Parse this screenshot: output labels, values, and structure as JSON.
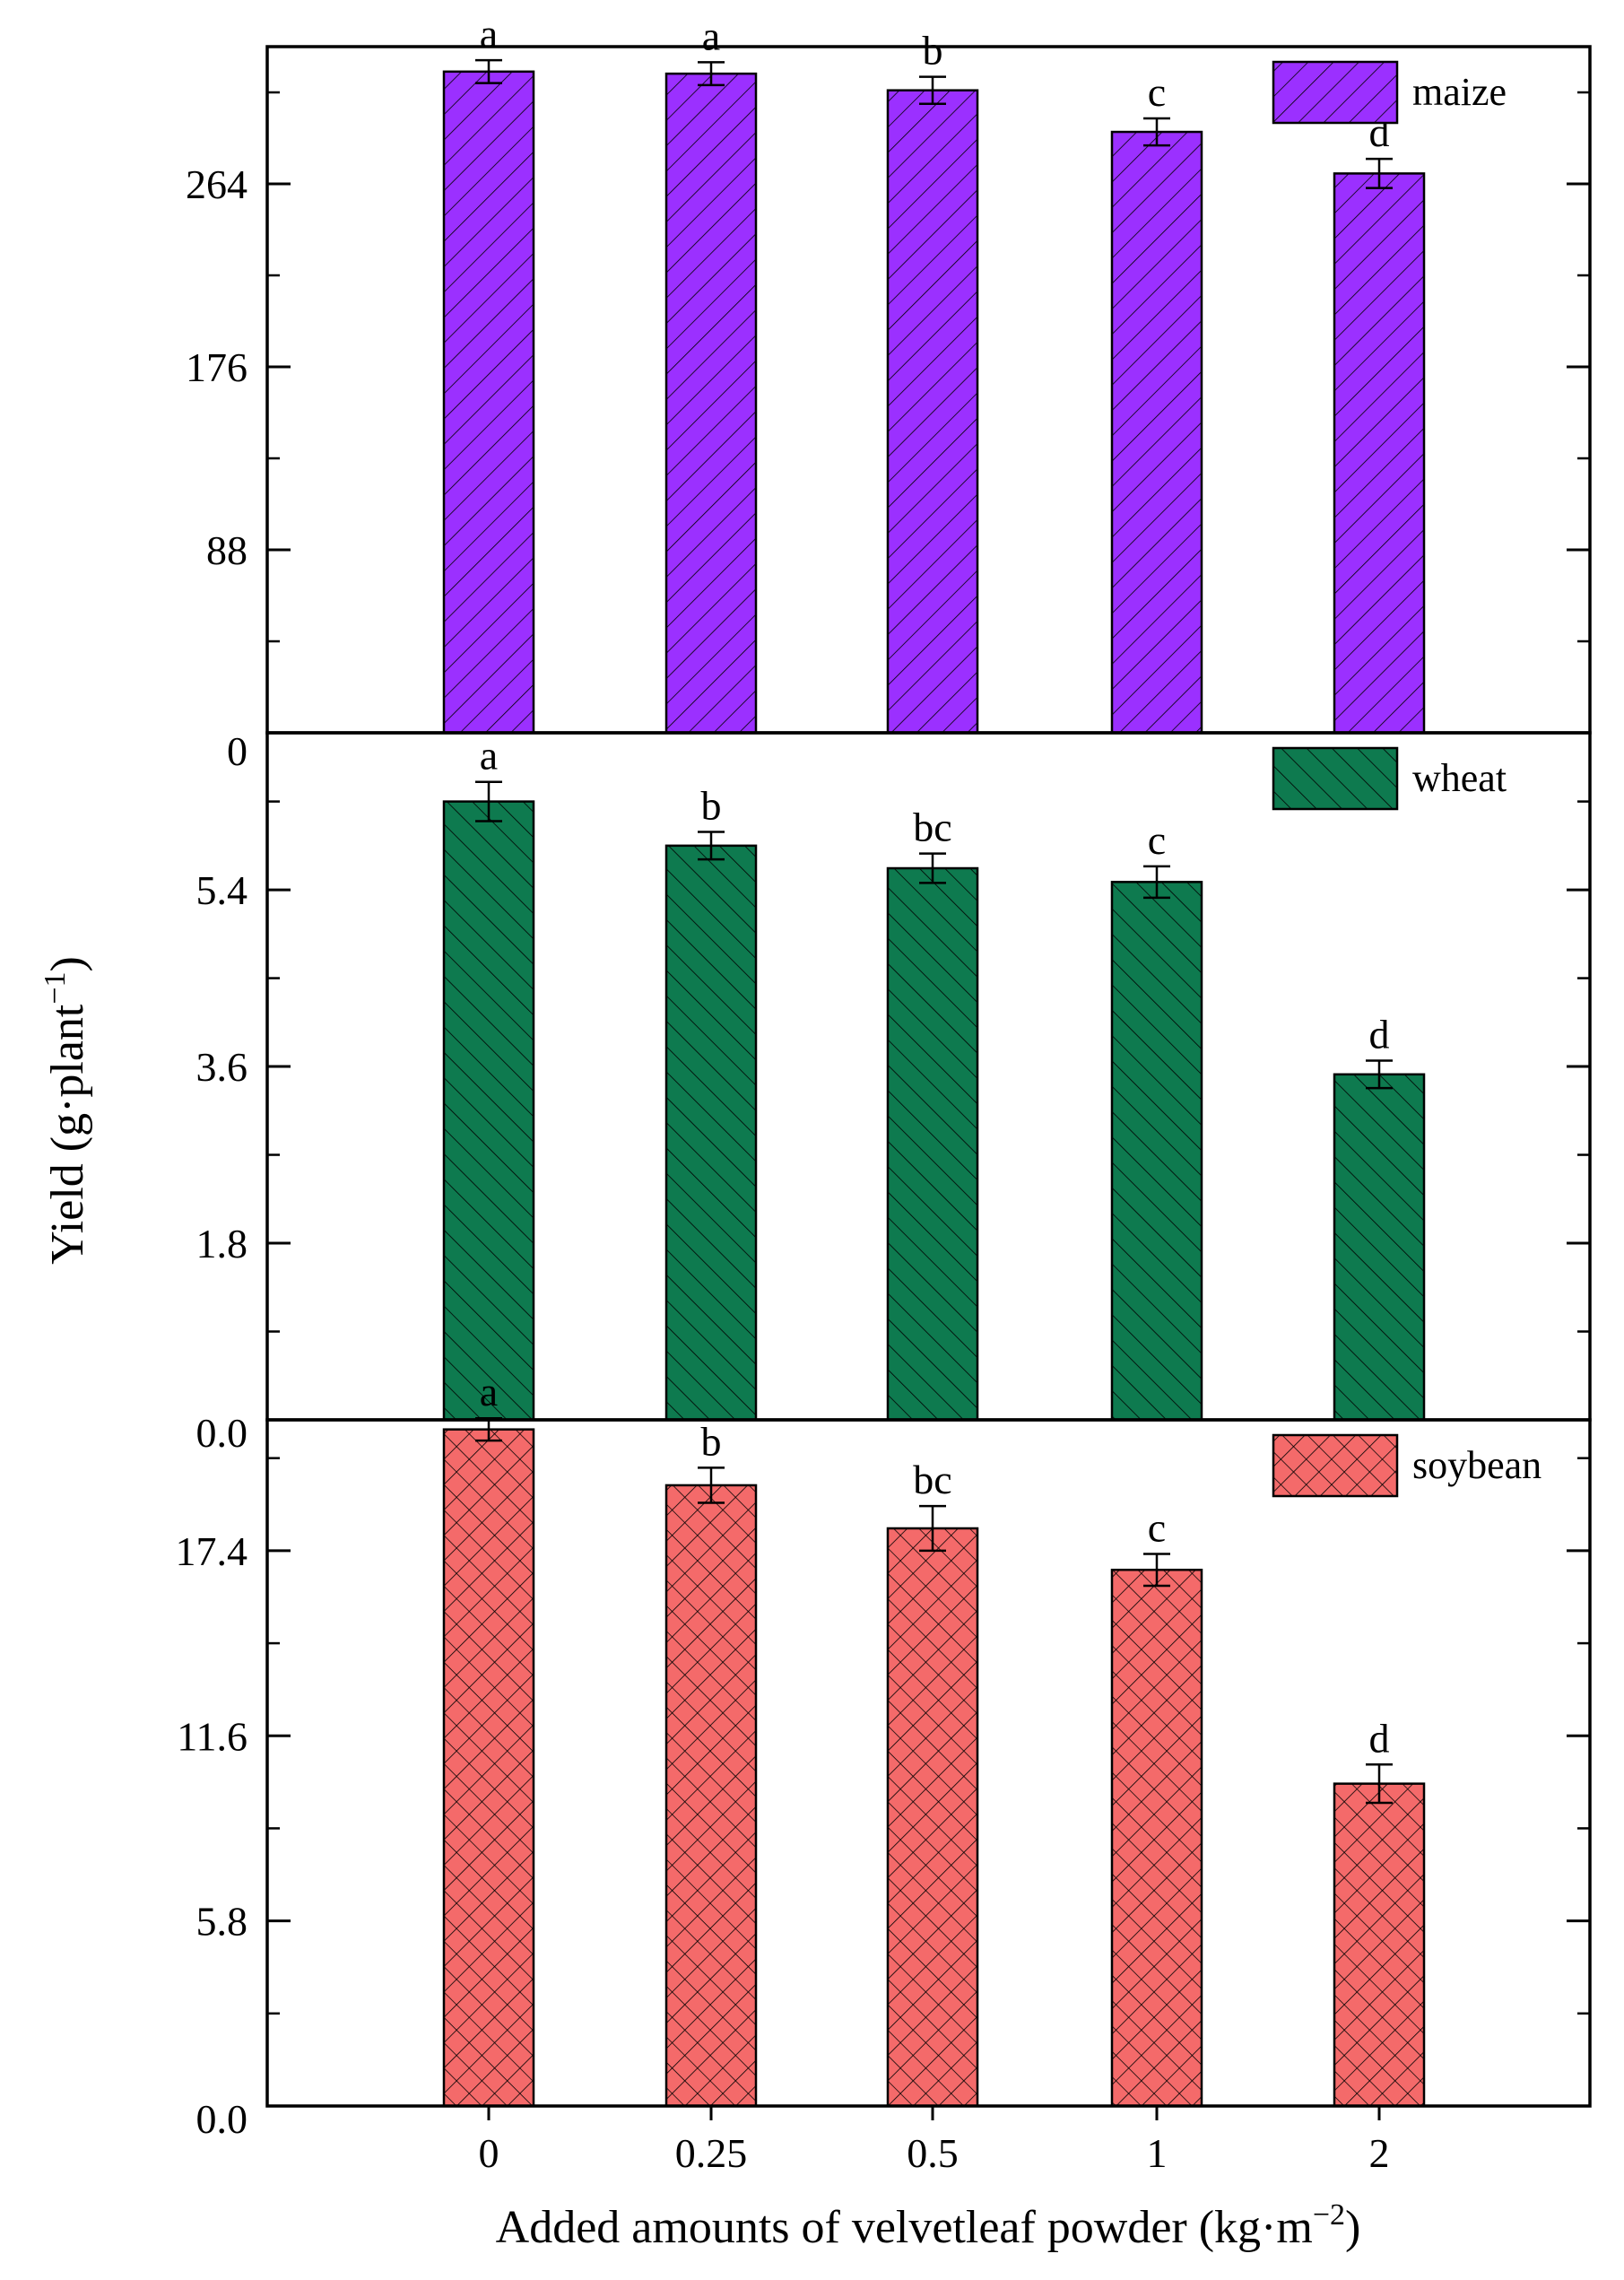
{
  "chart_data": {
    "type": "bar",
    "xlabel": "Added amounts of velvetleaf powder (kg·m",
    "xlabel_sup": "−2",
    "xlabel_end": ")",
    "ylabel": "Yield (g·plant",
    "ylabel_sup": "−1",
    "ylabel_end": ")",
    "categories": [
      "0",
      "0.25",
      "0.5",
      "1",
      "2"
    ],
    "panels": [
      {
        "series": "maize",
        "color": "#9b30ff",
        "pattern": "diagonal-forward",
        "ylim": [
          0,
          330
        ],
        "yticks": [
          0,
          88,
          176,
          264
        ],
        "ytick_labels": [
          "0",
          "88",
          "176",
          "264"
        ],
        "values": [
          318,
          317,
          309,
          289,
          269
        ],
        "errors": [
          5.5,
          5.5,
          6.5,
          6.5,
          7
        ],
        "letters": [
          "a",
          "a",
          "b",
          "c",
          "d"
        ]
      },
      {
        "series": "wheat",
        "color": "#0e7a4f",
        "pattern": "diagonal-backward",
        "ylim": [
          0,
          7.0
        ],
        "yticks": [
          0,
          1.8,
          3.6,
          5.4
        ],
        "ytick_labels": [
          "0.0",
          "1.8",
          "3.6",
          "5.4"
        ],
        "values": [
          6.3,
          5.85,
          5.62,
          5.48,
          3.52
        ],
        "errors": [
          0.2,
          0.14,
          0.15,
          0.16,
          0.14
        ],
        "letters": [
          "a",
          "b",
          "bc",
          "c",
          "d"
        ]
      },
      {
        "series": "soybean",
        "color": "#f46a6a",
        "pattern": "crosshatch",
        "ylim": [
          0,
          21.5
        ],
        "yticks": [
          0,
          5.8,
          11.6,
          17.4
        ],
        "ytick_labels": [
          "0.0",
          "5.8",
          "11.6",
          "17.4"
        ],
        "values": [
          21.2,
          19.45,
          18.1,
          16.8,
          10.1
        ],
        "errors": [
          0.35,
          0.55,
          0.7,
          0.5,
          0.6
        ],
        "letters": [
          "a",
          "b",
          "bc",
          "c",
          "d"
        ]
      }
    ]
  }
}
